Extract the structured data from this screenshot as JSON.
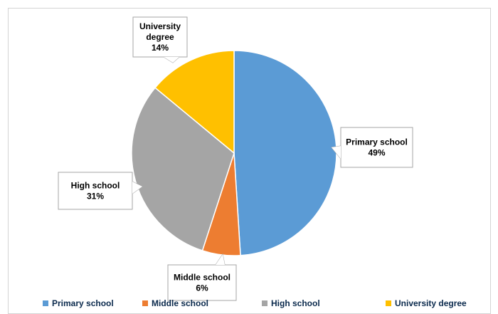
{
  "chart_data": {
    "type": "pie",
    "title": "",
    "slices": [
      {
        "label": "Primary school",
        "value": 49,
        "value_label": "49%",
        "color": "#5b9bd5"
      },
      {
        "label": "Middle school",
        "value": 6,
        "value_label": "6%",
        "color": "#ed7d31"
      },
      {
        "label": "High school",
        "value": 31,
        "value_label": "31%",
        "color": "#a5a5a5"
      },
      {
        "label": "University degree",
        "value": 14,
        "value_label": "14%",
        "color": "#ffc000"
      }
    ],
    "legend": {
      "placement": "bottom",
      "entries": [
        "Primary school",
        "Middle school",
        "High school",
        "University degree"
      ]
    }
  }
}
